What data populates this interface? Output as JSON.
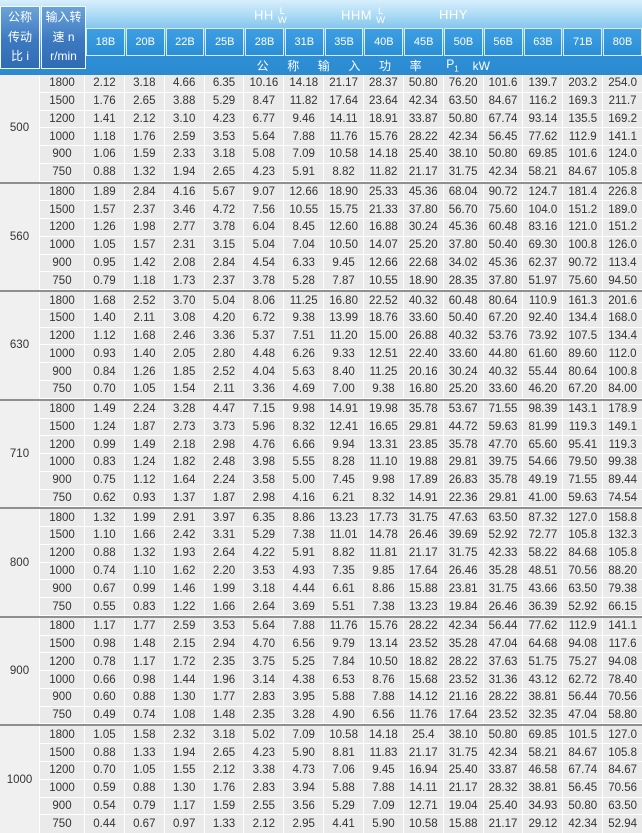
{
  "header": {
    "ratio_col_title": "公称\n传动\n比 i",
    "speed_col_title": "输入转\n速 n\nr/min",
    "series": {
      "hh": "HH",
      "hhm": "HHM",
      "hhy": "HHY",
      "frac_top": "L",
      "frac_bottom": "W"
    },
    "power_row": {
      "cjk_label": "公称输入功率",
      "symbol": "P",
      "symbol_sub": "1",
      "unit": "kW"
    }
  },
  "table": {
    "columns": [
      "18B",
      "20B",
      "22B",
      "25B",
      "28B",
      "31B",
      "35B",
      "40B",
      "45B",
      "50B",
      "56B",
      "63B",
      "71B",
      "80B"
    ],
    "groups": [
      {
        "ratio": "500",
        "rows": [
          {
            "speed": "1800",
            "values": [
              "2.12",
              "3.18",
              "4.66",
              "6.35",
              "10.16",
              "14.18",
              "21.17",
              "28.37",
              "50.80",
              "76.20",
              "101.6",
              "139.7",
              "203.2",
              "254.0"
            ]
          },
          {
            "speed": "1500",
            "values": [
              "1.76",
              "2.65",
              "3.88",
              "5.29",
              "8.47",
              "11.82",
              "17.64",
              "23.64",
              "42.34",
              "63.50",
              "84.67",
              "116.2",
              "169.3",
              "211.7"
            ]
          },
          {
            "speed": "1200",
            "values": [
              "1.41",
              "2.12",
              "3.10",
              "4.23",
              "6.77",
              "9.46",
              "14.11",
              "18.91",
              "33.87",
              "50.80",
              "67.74",
              "93.14",
              "135.5",
              "169.2"
            ]
          },
          {
            "speed": "1000",
            "values": [
              "1.18",
              "1.76",
              "2.59",
              "3.53",
              "5.64",
              "7.88",
              "11.76",
              "15.76",
              "28.22",
              "42.34",
              "56.45",
              "77.62",
              "112.9",
              "141.1"
            ]
          },
          {
            "speed": "900",
            "values": [
              "1.06",
              "1.59",
              "2.33",
              "3.18",
              "5.08",
              "7.09",
              "10.58",
              "14.18",
              "25.40",
              "38.10",
              "50.80",
              "69.85",
              "101.6",
              "124.0"
            ]
          },
          {
            "speed": "750",
            "values": [
              "0.88",
              "1.32",
              "1.94",
              "2.65",
              "4.23",
              "5.91",
              "8.82",
              "11.82",
              "21.17",
              "31.75",
              "42.34",
              "58.21",
              "84.67",
              "105.8"
            ]
          }
        ]
      },
      {
        "ratio": "560",
        "rows": [
          {
            "speed": "1800",
            "values": [
              "1.89",
              "2.84",
              "4.16",
              "5.67",
              "9.07",
              "12.66",
              "18.90",
              "25.33",
              "45.36",
              "68.04",
              "90.72",
              "124.7",
              "181.4",
              "226.8"
            ]
          },
          {
            "speed": "1500",
            "values": [
              "1.57",
              "2.37",
              "3.46",
              "4.72",
              "7.56",
              "10.55",
              "15.75",
              "21.33",
              "37.80",
              "56.70",
              "75.60",
              "104.0",
              "151.2",
              "189.0"
            ]
          },
          {
            "speed": "1200",
            "values": [
              "1.26",
              "1.98",
              "2.77",
              "3.78",
              "6.04",
              "8.45",
              "12.60",
              "16.88",
              "30.24",
              "45.36",
              "60.48",
              "83.16",
              "121.0",
              "151.2"
            ]
          },
          {
            "speed": "1000",
            "values": [
              "1.05",
              "1.57",
              "2.31",
              "3.15",
              "5.04",
              "7.04",
              "10.50",
              "14.07",
              "25.20",
              "37.80",
              "50.40",
              "69.30",
              "100.8",
              "126.0"
            ]
          },
          {
            "speed": "900",
            "values": [
              "0.95",
              "1.42",
              "2.08",
              "2.84",
              "4.54",
              "6.33",
              "9.45",
              "12.66",
              "22.68",
              "34.02",
              "45.36",
              "62.37",
              "90.72",
              "113.4"
            ]
          },
          {
            "speed": "750",
            "values": [
              "0.79",
              "1.18",
              "1.73",
              "2.37",
              "3.78",
              "5.28",
              "7.87",
              "10.55",
              "18.90",
              "28.35",
              "37.80",
              "51.97",
              "75.60",
              "94.50"
            ]
          }
        ]
      },
      {
        "ratio": "630",
        "rows": [
          {
            "speed": "1800",
            "values": [
              "1.68",
              "2.52",
              "3.70",
              "5.04",
              "8.06",
              "11.25",
              "16.80",
              "22.52",
              "40.32",
              "60.48",
              "80.64",
              "110.9",
              "161.3",
              "201.6"
            ]
          },
          {
            "speed": "1500",
            "values": [
              "1.40",
              "2.11",
              "3.08",
              "4.20",
              "6.72",
              "9.38",
              "13.99",
              "18.76",
              "33.60",
              "50.40",
              "67.20",
              "92.40",
              "134.4",
              "168.0"
            ]
          },
          {
            "speed": "1200",
            "values": [
              "1.12",
              "1.68",
              "2.46",
              "3.36",
              "5.37",
              "7.51",
              "11.20",
              "15.00",
              "26.88",
              "40.32",
              "53.76",
              "73.92",
              "107.5",
              "134.4"
            ]
          },
          {
            "speed": "1000",
            "values": [
              "0.93",
              "1.40",
              "2.05",
              "2.80",
              "4.48",
              "6.26",
              "9.33",
              "12.51",
              "22.40",
              "33.60",
              "44.80",
              "61.60",
              "89.60",
              "112.0"
            ]
          },
          {
            "speed": "900",
            "values": [
              "0.84",
              "1.26",
              "1.85",
              "2.52",
              "4.04",
              "5.63",
              "8.40",
              "11.25",
              "20.16",
              "30.24",
              "40.32",
              "55.44",
              "80.64",
              "100.8"
            ]
          },
          {
            "speed": "750",
            "values": [
              "0.70",
              "1.05",
              "1.54",
              "2.11",
              "3.36",
              "4.69",
              "7.00",
              "9.38",
              "16.80",
              "25.20",
              "33.60",
              "46.20",
              "67.20",
              "84.00"
            ]
          }
        ]
      },
      {
        "ratio": "710",
        "rows": [
          {
            "speed": "1800",
            "values": [
              "1.49",
              "2.24",
              "3.28",
              "4.47",
              "7.15",
              "9.98",
              "14.91",
              "19.98",
              "35.78",
              "53.67",
              "71.55",
              "98.39",
              "143.1",
              "178.9"
            ]
          },
          {
            "speed": "1500",
            "values": [
              "1.24",
              "1.87",
              "2.73",
              "3.73",
              "5.96",
              "8.32",
              "12.41",
              "16.65",
              "29.81",
              "44.72",
              "59.63",
              "81.99",
              "119.3",
              "149.1"
            ]
          },
          {
            "speed": "1200",
            "values": [
              "0.99",
              "1.49",
              "2.18",
              "2.98",
              "4.76",
              "6.66",
              "9.94",
              "13.31",
              "23.85",
              "35.78",
              "47.70",
              "65.60",
              "95.41",
              "119.3"
            ]
          },
          {
            "speed": "1000",
            "values": [
              "0.83",
              "1.24",
              "1.82",
              "2.48",
              "3.98",
              "5.55",
              "8.28",
              "11.10",
              "19.88",
              "29.81",
              "39.75",
              "54.66",
              "79.50",
              "99.38"
            ]
          },
          {
            "speed": "900",
            "values": [
              "0.75",
              "1.12",
              "1.64",
              "2.24",
              "3.58",
              "5.00",
              "7.45",
              "9.98",
              "17.89",
              "26.83",
              "35.78",
              "49.19",
              "71.55",
              "89.44"
            ]
          },
          {
            "speed": "750",
            "values": [
              "0.62",
              "0.93",
              "1.37",
              "1.87",
              "2.98",
              "4.16",
              "6.21",
              "8.32",
              "14.91",
              "22.36",
              "29.81",
              "41.00",
              "59.63",
              "74.54"
            ]
          }
        ]
      },
      {
        "ratio": "800",
        "rows": [
          {
            "speed": "1800",
            "values": [
              "1.32",
              "1.99",
              "2.91",
              "3.97",
              "6.35",
              "8.86",
              "13.23",
              "17.73",
              "31.75",
              "47.63",
              "63.50",
              "87.32",
              "127.0",
              "158.8"
            ]
          },
          {
            "speed": "1500",
            "values": [
              "1.10",
              "1.66",
              "2.42",
              "3.31",
              "5.29",
              "7.38",
              "11.01",
              "14.78",
              "26.46",
              "39.69",
              "52.92",
              "72.77",
              "105.8",
              "132.3"
            ]
          },
          {
            "speed": "1200",
            "values": [
              "0.88",
              "1.32",
              "1.93",
              "2.64",
              "4.22",
              "5.91",
              "8.82",
              "11.81",
              "21.17",
              "31.75",
              "42.33",
              "58.22",
              "84.68",
              "105.8"
            ]
          },
          {
            "speed": "1000",
            "values": [
              "0.74",
              "1.10",
              "1.62",
              "2.20",
              "3.53",
              "4.93",
              "7.35",
              "9.85",
              "17.64",
              "26.46",
              "35.28",
              "48.51",
              "70.56",
              "88.20"
            ]
          },
          {
            "speed": "900",
            "values": [
              "0.67",
              "0.99",
              "1.46",
              "1.99",
              "3.18",
              "4.44",
              "6.61",
              "8.86",
              "15.88",
              "23.81",
              "31.75",
              "43.66",
              "63.50",
              "79.38"
            ]
          },
          {
            "speed": "750",
            "values": [
              "0.55",
              "0.83",
              "1.22",
              "1.66",
              "2.64",
              "3.69",
              "5.51",
              "7.38",
              "13.23",
              "19.84",
              "26.46",
              "36.39",
              "52.92",
              "66.15"
            ]
          }
        ]
      },
      {
        "ratio": "900",
        "rows": [
          {
            "speed": "1800",
            "values": [
              "1.17",
              "1.77",
              "2.59",
              "3.53",
              "5.64",
              "7.88",
              "11.76",
              "15.76",
              "28.22",
              "42.34",
              "56.44",
              "77.62",
              "112.9",
              "141.1"
            ]
          },
          {
            "speed": "1500",
            "values": [
              "0.98",
              "1.48",
              "2.15",
              "2.94",
              "4.70",
              "6.56",
              "9.79",
              "13.14",
              "23.52",
              "35.28",
              "47.04",
              "64.68",
              "94.08",
              "117.6"
            ]
          },
          {
            "speed": "1200",
            "values": [
              "0.78",
              "1.17",
              "1.72",
              "2.35",
              "3.75",
              "5.25",
              "7.84",
              "10.50",
              "18.82",
              "28.22",
              "37.63",
              "51.75",
              "75.27",
              "94.08"
            ]
          },
          {
            "speed": "1000",
            "values": [
              "0.66",
              "0.98",
              "1.44",
              "1.96",
              "3.14",
              "4.38",
              "6.53",
              "8.76",
              "15.68",
              "23.52",
              "31.36",
              "43.12",
              "62.72",
              "78.40"
            ]
          },
          {
            "speed": "900",
            "values": [
              "0.60",
              "0.88",
              "1.30",
              "1.77",
              "2.83",
              "3.95",
              "5.88",
              "7.88",
              "14.12",
              "21.16",
              "28.22",
              "38.81",
              "56.44",
              "70.56"
            ]
          },
          {
            "speed": "750",
            "values": [
              "0.49",
              "0.74",
              "1.08",
              "1.48",
              "2.35",
              "3.28",
              "4.90",
              "6.56",
              "11.76",
              "17.64",
              "23.52",
              "32.35",
              "47.04",
              "58.80"
            ]
          }
        ]
      },
      {
        "ratio": "1000",
        "rows": [
          {
            "speed": "1800",
            "values": [
              "1.05",
              "1.58",
              "2.32",
              "3.18",
              "5.02",
              "7.09",
              "10.58",
              "14.18",
              "25.4",
              "38.10",
              "50.80",
              "69.85",
              "101.5",
              "127.0"
            ]
          },
          {
            "speed": "1500",
            "values": [
              "0.88",
              "1.33",
              "1.94",
              "2.65",
              "4.23",
              "5.90",
              "8.81",
              "11.83",
              "21.17",
              "31.75",
              "42.34",
              "58.21",
              "84.67",
              "105.8"
            ]
          },
          {
            "speed": "1200",
            "values": [
              "0.70",
              "1.05",
              "1.55",
              "2.12",
              "3.38",
              "4.73",
              "7.06",
              "9.45",
              "16.94",
              "25.40",
              "33.87",
              "46.58",
              "67.74",
              "84.67"
            ]
          },
          {
            "speed": "1000",
            "values": [
              "0.59",
              "0.88",
              "1.30",
              "1.76",
              "2.83",
              "3.94",
              "5.88",
              "7.88",
              "14.11",
              "21.17",
              "28.32",
              "38.81",
              "56.45",
              "70.56"
            ]
          },
          {
            "speed": "900",
            "values": [
              "0.54",
              "0.79",
              "1.17",
              "1.59",
              "2.55",
              "3.56",
              "5.29",
              "7.09",
              "12.71",
              "19.04",
              "25.40",
              "34.93",
              "50.80",
              "63.50"
            ]
          },
          {
            "speed": "750",
            "values": [
              "0.44",
              "0.67",
              "0.97",
              "1.33",
              "2.12",
              "2.95",
              "4.41",
              "5.90",
              "10.58",
              "15.88",
              "21.17",
              "29.12",
              "42.34",
              "52.94"
            ]
          }
        ]
      }
    ]
  }
}
